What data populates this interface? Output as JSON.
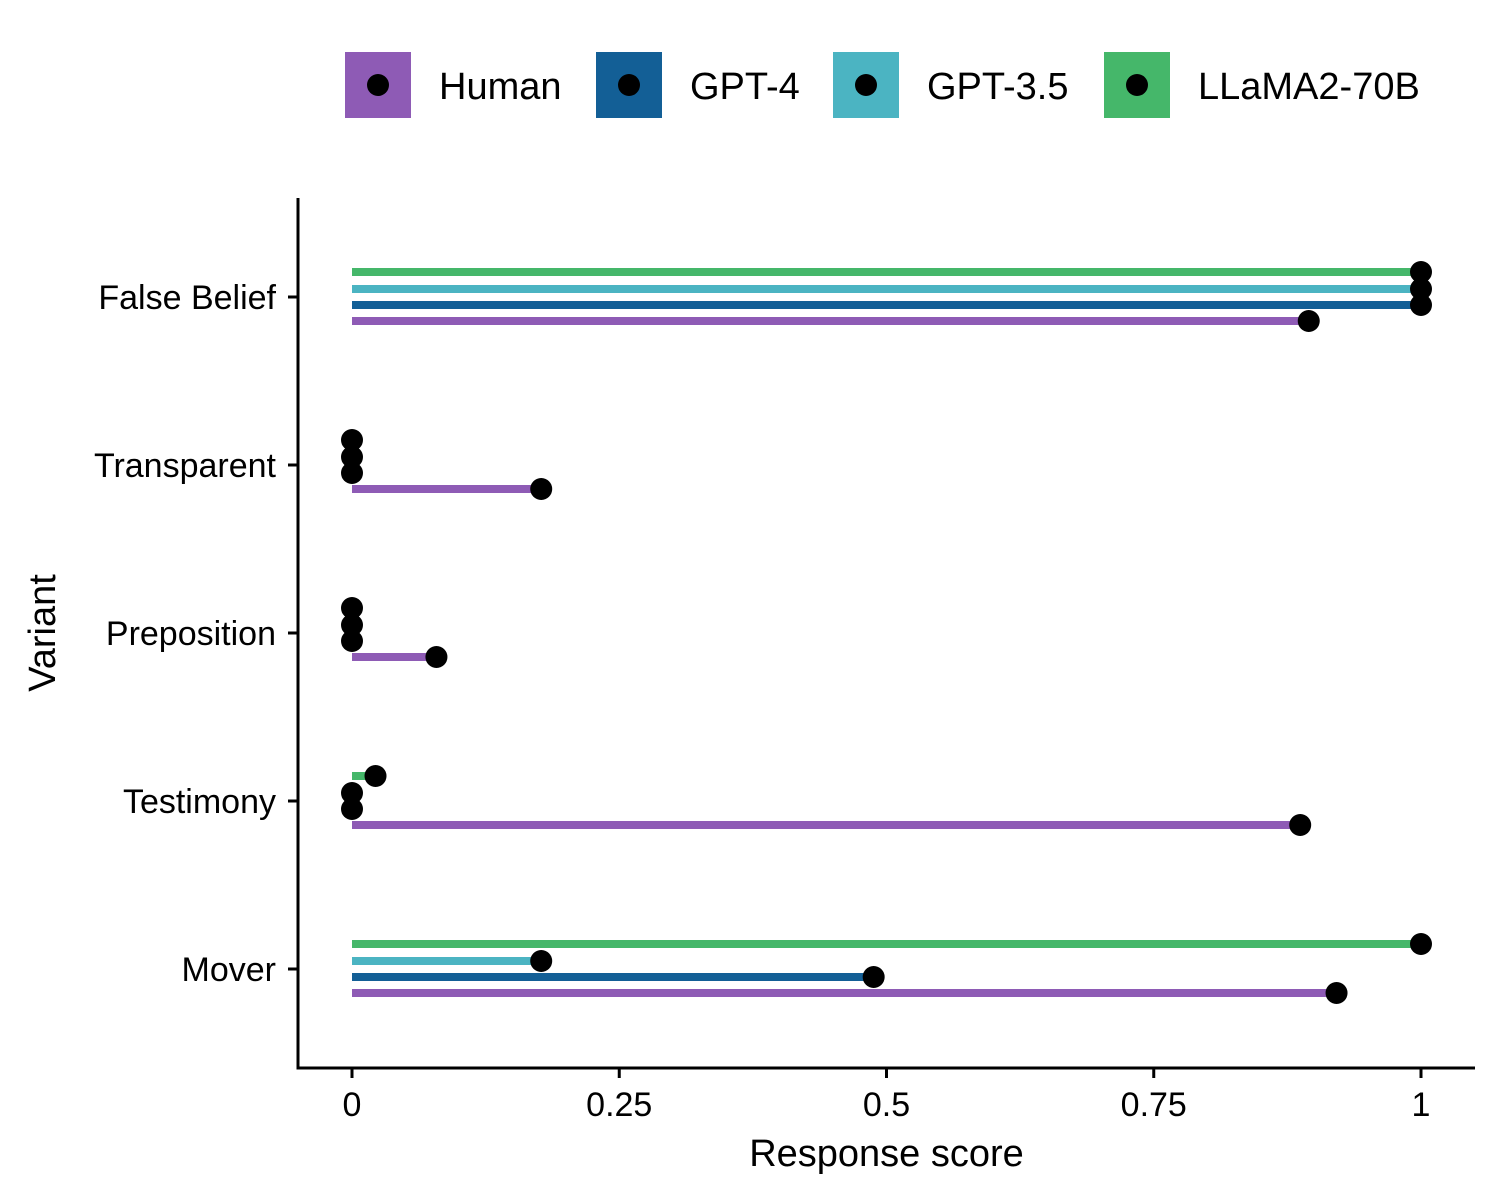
{
  "chart_data": {
    "type": "lollipop",
    "title": "",
    "xlabel": "Response score",
    "ylabel": "Variant",
    "xlim": [
      -0.05,
      1.05
    ],
    "xticks": [
      0,
      0.25,
      0.5,
      0.75,
      1
    ],
    "xtick_labels": [
      "0",
      "0.25",
      "0.5",
      "0.75",
      "1"
    ],
    "categories": [
      "False Belief",
      "Transparent",
      "Preposition",
      "Testimony",
      "Mover"
    ],
    "series": [
      {
        "name": "Human",
        "color": "#8E5BB5",
        "values": [
          0.895,
          0.177,
          0.079,
          0.887,
          0.921
        ]
      },
      {
        "name": "GPT-4",
        "color": "#135F96",
        "values": [
          1.0,
          0.0,
          0.0,
          0.0,
          0.488
        ]
      },
      {
        "name": "GPT-3.5",
        "color": "#4BB4C2",
        "values": [
          1.0,
          0.0,
          0.0,
          0.0,
          0.177
        ]
      },
      {
        "name": "LLaMA2-70B",
        "color": "#45B76A",
        "values": [
          1.0,
          0.0,
          0.0,
          0.022,
          1.0
        ]
      }
    ],
    "legend_position": "top",
    "grid": false,
    "point_color": "#000000"
  }
}
